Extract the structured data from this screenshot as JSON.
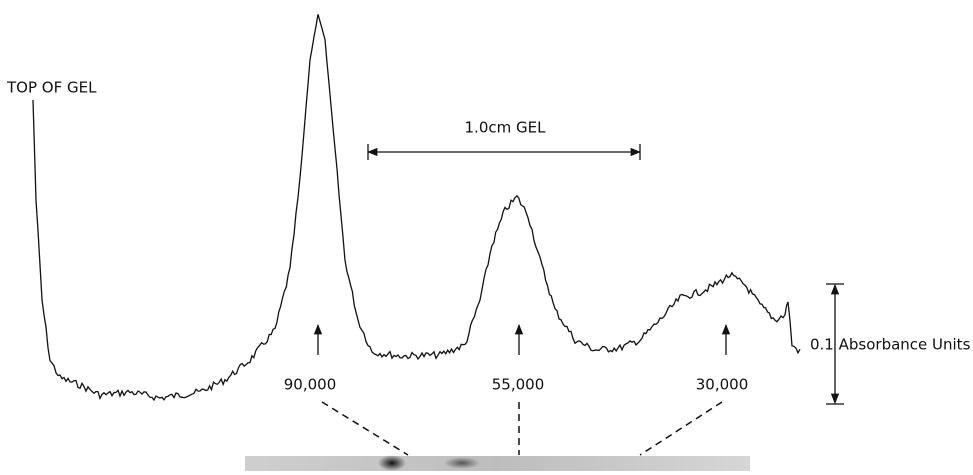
{
  "labels": {
    "top": "TOP OF GEL",
    "scale": "1.0cm GEL",
    "absorbance": "0.1 Absorbance Units"
  },
  "bands": [
    "90,000",
    "55,000",
    "30,000"
  ]
}
